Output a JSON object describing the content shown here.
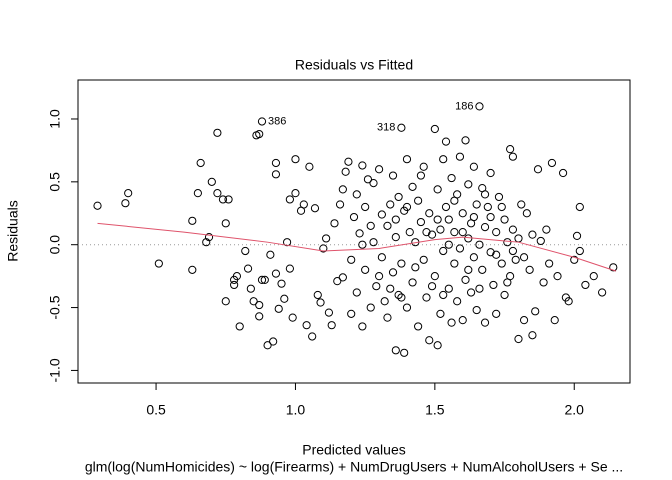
{
  "chart_data": {
    "type": "scatter",
    "title": "Residuals vs Fitted",
    "x_label": "Predicted values",
    "subtitle": "glm(log(NumHomicides) ~ log(Firearms) + NumDrugUsers + NumAlcoholUsers + Se ...",
    "y_label": "Residuals",
    "xlim": [
      0.22,
      2.2
    ],
    "ylim": [
      -1.1,
      1.31
    ],
    "xticks": [
      {
        "value": 0.5,
        "label": "0.5"
      },
      {
        "value": 1,
        "label": "1.0"
      },
      {
        "value": 1.5,
        "label": "1.5"
      },
      {
        "value": 2,
        "label": "2.0"
      }
    ],
    "yticks": [
      {
        "value": -1,
        "label": "-1.0"
      },
      {
        "value": -0.5,
        "label": "-0.5"
      },
      {
        "value": 0,
        "label": "0.0"
      },
      {
        "value": 0.5,
        "label": "0.5"
      },
      {
        "value": 1,
        "label": "1.0"
      }
    ],
    "grid": false,
    "color": "#000000",
    "reference_line": 0,
    "x": [
      0.29,
      0.39,
      0.4,
      0.51,
      0.63,
      0.63,
      0.65,
      0.66,
      0.68,
      0.69,
      0.7,
      0.72,
      0.72,
      0.74,
      0.75,
      0.75,
      0.76,
      0.78,
      0.78,
      0.79,
      0.8,
      0.82,
      0.83,
      0.84,
      0.85,
      0.86,
      0.87,
      0.88,
      0.87,
      0.87,
      0.88,
      0.89,
      0.9,
      0.91,
      0.92,
      0.93,
      0.93,
      0.93,
      0.94,
      0.95,
      0.96,
      0.97,
      0.98,
      0.98,
      0.99,
      1.0,
      1.0,
      1.02,
      1.03,
      1.04,
      1.05,
      1.06,
      1.07,
      1.08,
      1.09,
      1.1,
      1.11,
      1.12,
      1.13,
      1.14,
      1.15,
      1.16,
      1.17,
      1.17,
      1.18,
      1.19,
      1.2,
      1.2,
      1.21,
      1.22,
      1.22,
      1.23,
      1.24,
      1.24,
      1.25,
      1.25,
      1.26,
      1.27,
      1.28,
      1.28,
      1.29,
      1.3,
      1.31,
      1.31,
      1.32,
      1.33,
      1.33,
      1.34,
      1.35,
      1.35,
      1.36,
      1.36,
      1.37,
      1.37,
      1.38,
      1.38,
      1.39,
      1.39,
      1.4,
      1.4,
      1.41,
      1.42,
      1.42,
      1.43,
      1.44,
      1.44,
      1.45,
      1.46,
      1.46,
      1.47,
      1.48,
      1.48,
      1.49,
      1.5,
      1.5,
      1.51,
      1.51,
      1.52,
      1.52,
      1.53,
      1.53,
      1.54,
      1.54,
      1.55,
      1.55,
      1.56,
      1.56,
      1.57,
      1.57,
      1.58,
      1.58,
      1.59,
      1.59,
      1.6,
      1.6,
      1.61,
      1.61,
      1.62,
      1.62,
      1.63,
      1.63,
      1.64,
      1.64,
      1.65,
      1.65,
      1.66,
      1.66,
      1.67,
      1.67,
      1.68,
      1.68,
      1.69,
      1.7,
      1.7,
      1.71,
      1.72,
      1.72,
      1.73,
      1.74,
      1.75,
      1.75,
      1.76,
      1.77,
      1.77,
      1.78,
      1.78,
      1.79,
      1.8,
      1.8,
      1.81,
      1.82,
      1.82,
      1.83,
      1.84,
      1.85,
      1.85,
      1.86,
      1.87,
      1.88,
      1.89,
      1.9,
      1.91,
      1.92,
      1.93,
      1.94,
      1.96,
      1.97,
      1.98,
      2.0,
      2.01,
      2.02,
      2.04,
      2.07,
      2.1,
      2.14,
      2.02,
      1.24,
      1.27,
      1.3,
      1.34,
      1.36,
      1.38,
      1.4,
      1.43,
      1.45,
      1.47,
      1.49,
      1.51,
      1.53,
      1.55,
      1.57,
      1.6,
      1.62,
      1.64,
      1.66,
      1.68,
      1.7,
      1.72,
      1.74,
      1.76,
      1.78
    ],
    "values": [
      0.31,
      0.33,
      0.41,
      -0.15,
      0.19,
      -0.2,
      0.41,
      0.65,
      0.02,
      0.06,
      0.5,
      0.89,
      0.41,
      0.36,
      0.17,
      -0.45,
      0.36,
      -0.28,
      -0.32,
      -0.25,
      -0.65,
      -0.05,
      -0.19,
      -0.35,
      -0.45,
      0.87,
      0.88,
      0.98,
      -0.48,
      -0.57,
      -0.28,
      -0.28,
      -0.8,
      -0.08,
      -0.77,
      0.65,
      0.56,
      -0.23,
      -0.51,
      -0.31,
      -0.43,
      0.02,
      -0.19,
      0.36,
      -0.58,
      0.68,
      0.41,
      0.27,
      0.32,
      -0.64,
      0.62,
      -0.73,
      0.29,
      -0.4,
      -0.46,
      -0.03,
      0.05,
      -0.54,
      -0.64,
      0.17,
      -0.29,
      0.32,
      0.44,
      -0.26,
      0.58,
      0.66,
      -0.12,
      -0.55,
      0.22,
      0.4,
      -0.38,
      0.09,
      0.63,
      -0.65,
      0.3,
      -0.2,
      0.52,
      -0.5,
      0.02,
      0.49,
      -0.33,
      0.6,
      -0.1,
      0.24,
      -0.45,
      0.15,
      -0.58,
      0.32,
      -0.22,
      0.55,
      -0.84,
      0.06,
      -0.4,
      0.38,
      0.93,
      -0.15,
      -0.86,
      0.27,
      -0.5,
      0.68,
      0.1,
      -0.3,
      0.46,
      0.02,
      -0.65,
      0.35,
      0.18,
      -0.12,
      0.62,
      -0.42,
      0.25,
      -0.76,
      0.08,
      0.92,
      -0.25,
      0.44,
      -0.8,
      0.12,
      -0.55,
      0.68,
      -0.05,
      0.3,
      0.82,
      -0.35,
      0.2,
      -0.62,
      0.53,
      -0.15,
      0.1,
      0.4,
      -0.45,
      0.7,
      -0.03,
      -0.6,
      0.25,
      0.83,
      -0.28,
      0.05,
      0.48,
      -0.38,
      0.17,
      -0.1,
      0.62,
      0.32,
      -0.52,
      1.1,
      0.0,
      0.45,
      -0.2,
      0.14,
      -0.62,
      0.3,
      -0.06,
      0.57,
      -0.32,
      0.1,
      -0.55,
      0.38,
      -0.15,
      0.2,
      -0.4,
      0.02,
      0.76,
      -0.25,
      0.7,
      0.12,
      -0.12,
      -0.75,
      0.05,
      0.32,
      -0.6,
      -0.1,
      0.25,
      -0.2,
      -0.72,
      0.08,
      -0.53,
      0.6,
      0.03,
      -0.3,
      0.12,
      -0.15,
      0.65,
      -0.6,
      -0.25,
      0.57,
      -0.42,
      -0.45,
      -0.12,
      0.07,
      0.3,
      -0.32,
      -0.25,
      -0.38,
      -0.18,
      -0.05,
      0.0,
      0.15,
      -0.25,
      -0.35,
      0.2,
      -0.42,
      0.3,
      -0.18,
      0.55,
      0.1,
      -0.33,
      0.2,
      -0.4,
      0.0,
      0.35,
      0.1,
      -0.2,
      0.22,
      -0.35,
      0.4,
      0.22,
      -0.08,
      0.3,
      -0.3,
      -0.05
    ],
    "smooth": {
      "color": "#DF536B",
      "x": [
        0.29,
        0.6,
        0.9,
        1.1,
        1.3,
        1.5,
        1.6,
        1.8,
        2.0,
        2.15
      ],
      "values": [
        0.17,
        0.1,
        0.02,
        -0.05,
        -0.03,
        0.04,
        0.06,
        0.02,
        -0.1,
        -0.21
      ]
    },
    "annotations": [
      {
        "text": "386",
        "x": 0.88,
        "y": 0.98
      },
      {
        "text": "318",
        "x": 1.38,
        "y": 0.93
      },
      {
        "text": "186",
        "x": 1.66,
        "y": 1.1
      }
    ]
  }
}
